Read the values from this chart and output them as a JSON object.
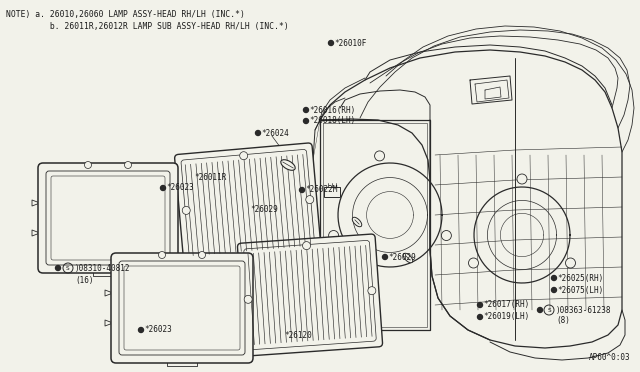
{
  "bg_color": "#f2f2ea",
  "line_color": "#2a2a2a",
  "text_color": "#1a1a1a",
  "note_lines": [
    "NOTE) a. 26010,26060 LAMP ASSY-HEAD RH/LH (INC.*)",
    "         b. 26011R,26012R LAMP SUB ASSY-HEAD RH/LH (INC.*)"
  ],
  "diagram_code": "AP60^0:03",
  "font_size_label": 5.5,
  "font_size_note": 5.8,
  "figsize": [
    6.4,
    3.72
  ],
  "dpi": 100
}
